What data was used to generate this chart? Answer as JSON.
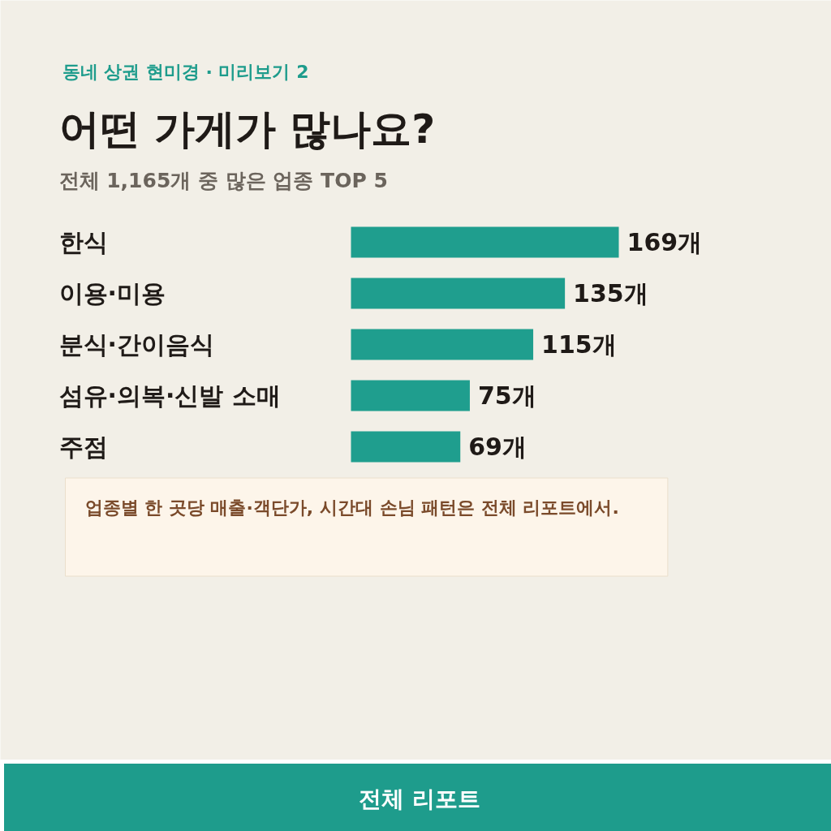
{
  "chart_data": {
    "type": "bar",
    "orientation": "horizontal",
    "title": "어떤 가게가 많나요?",
    "subtitle": "전체 1,165개 중 많은 업종 TOP 5",
    "categories": [
      "한식",
      "이용·미용",
      "분식·간이음식",
      "섬유·의복·신발 소매",
      "주점"
    ],
    "values": [
      169,
      135,
      115,
      75,
      69
    ],
    "value_labels": [
      "169개",
      "135개",
      "115개",
      "75개",
      "69개"
    ],
    "color": "#1f9e8e",
    "annotations": [
      "동네 상권 현미경 · 미리보기 2",
      "업종별 한 곳당 매출·객단가, 시간대 손님 패턴은 전체 리포트에서.",
      "전체 리포트"
    ]
  }
}
